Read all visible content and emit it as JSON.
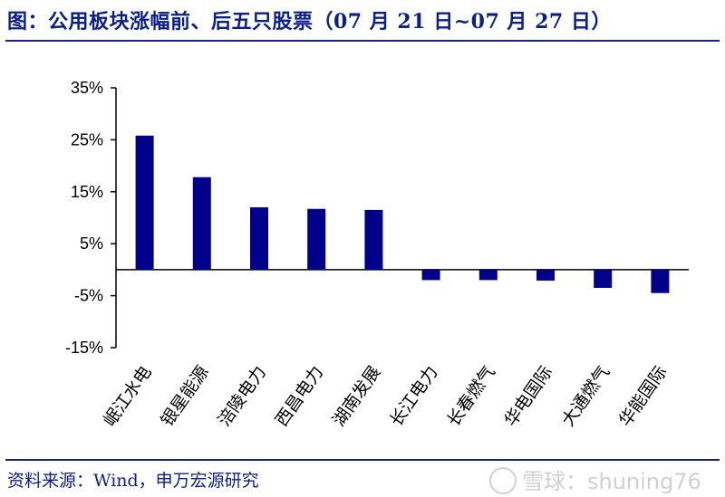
{
  "title": "图：公用板块涨幅前、后五只股票（07 月 21 日~07 月 27 日）",
  "source": "资料来源：Wind，申万宏源研究",
  "watermark": "雪球：shuning76",
  "chart_data": {
    "type": "bar",
    "categories": [
      "岷江水电",
      "银星能源",
      "涪陵电力",
      "西昌电力",
      "湖南发展",
      "长江电力",
      "长春燃气",
      "华电国际",
      "大通燃气",
      "华能国际"
    ],
    "values": [
      25.8,
      17.8,
      12.0,
      11.7,
      11.5,
      -2.0,
      -2.0,
      -2.1,
      -3.5,
      -4.5
    ],
    "yticks": [
      "35%",
      "25%",
      "15%",
      "5%",
      "-5%",
      "-15%"
    ],
    "ylim": [
      -15,
      35
    ],
    "bar_color": "#00008b",
    "grid": false
  }
}
